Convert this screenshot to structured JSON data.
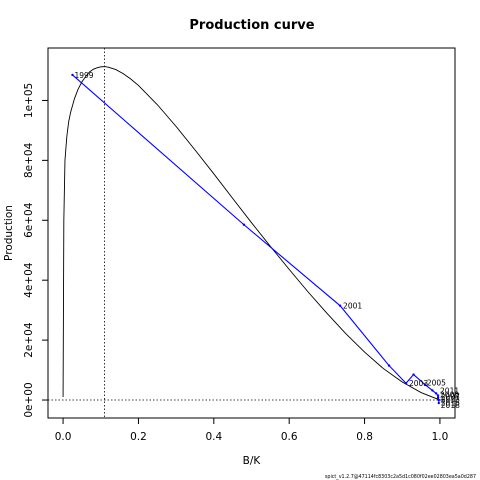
{
  "chart_data": {
    "type": "line",
    "title": "Production curve",
    "xlabel": "B/K",
    "ylabel": "Production",
    "xlim": [
      -0.04,
      1.04
    ],
    "ylim": [
      -6000,
      117500
    ],
    "x_ticks": [
      0.0,
      0.2,
      0.4,
      0.6,
      0.8,
      1.0
    ],
    "x_tick_labels": [
      "0.0",
      "0.2",
      "0.4",
      "0.6",
      "0.8",
      "1.0"
    ],
    "y_ticks": [
      0,
      20000,
      40000,
      60000,
      80000,
      100000
    ],
    "y_tick_labels": [
      "0e+00",
      "2e+04",
      "4e+04",
      "6e+04",
      "8e+04",
      "1e+05"
    ],
    "production_curve": {
      "color": "#000000",
      "x": [
        0.0,
        0.002,
        0.005,
        0.01,
        0.015,
        0.02,
        0.03,
        0.04,
        0.05,
        0.06,
        0.07,
        0.08,
        0.09,
        0.1,
        0.11,
        0.12,
        0.14,
        0.16,
        0.18,
        0.2,
        0.25,
        0.3,
        0.35,
        0.4,
        0.45,
        0.5,
        0.55,
        0.6,
        0.65,
        0.7,
        0.75,
        0.8,
        0.85,
        0.9,
        0.95,
        1.0
      ],
      "y": [
        1000,
        60000,
        80000,
        88000,
        93000,
        96000,
        100500,
        103800,
        106200,
        108000,
        109500,
        110400,
        110900,
        111200,
        111300,
        111100,
        110300,
        108900,
        107100,
        105000,
        98600,
        91300,
        83500,
        75500,
        67300,
        59200,
        51300,
        43600,
        36100,
        29000,
        22200,
        16000,
        10500,
        6000,
        2500,
        0
      ]
    },
    "trajectory": {
      "color": "#0000ff",
      "x": [
        0.025,
        0.48,
        0.735,
        0.865,
        0.91,
        0.93,
        0.96,
        0.98,
        0.99,
        0.995,
        0.995,
        0.997,
        0.997
      ],
      "y": [
        108500,
        58500,
        31500,
        11500,
        5600,
        8500,
        5200,
        3200,
        2200,
        1500,
        800,
        0,
        -1000
      ]
    },
    "point_labels": [
      {
        "text": "1999",
        "x": 0.025,
        "y": 108500
      },
      {
        "text": "2001",
        "x": 0.735,
        "y": 31500
      },
      {
        "text": "2003",
        "x": 0.91,
        "y": 5600
      },
      {
        "text": "2005",
        "x": 0.96,
        "y": 5200
      },
      {
        "text": "2011",
        "x": 0.995,
        "y": 2200
      },
      {
        "text": "2009",
        "x": 0.995,
        "y": 1500
      },
      {
        "text": "2007",
        "x": 0.997,
        "y": 800
      },
      {
        "text": "2013",
        "x": 0.997,
        "y": 0
      },
      {
        "text": "2015",
        "x": 0.997,
        "y": -800
      },
      {
        "text": "2018",
        "x": 0.997,
        "y": -1400
      }
    ],
    "reference_lines": {
      "vertical_x": 0.11,
      "horizontal_y": 0
    },
    "footer": "spict_v1.2.7@47114fc8303c2a5d1c080f02ee02803ea5a0d287"
  }
}
